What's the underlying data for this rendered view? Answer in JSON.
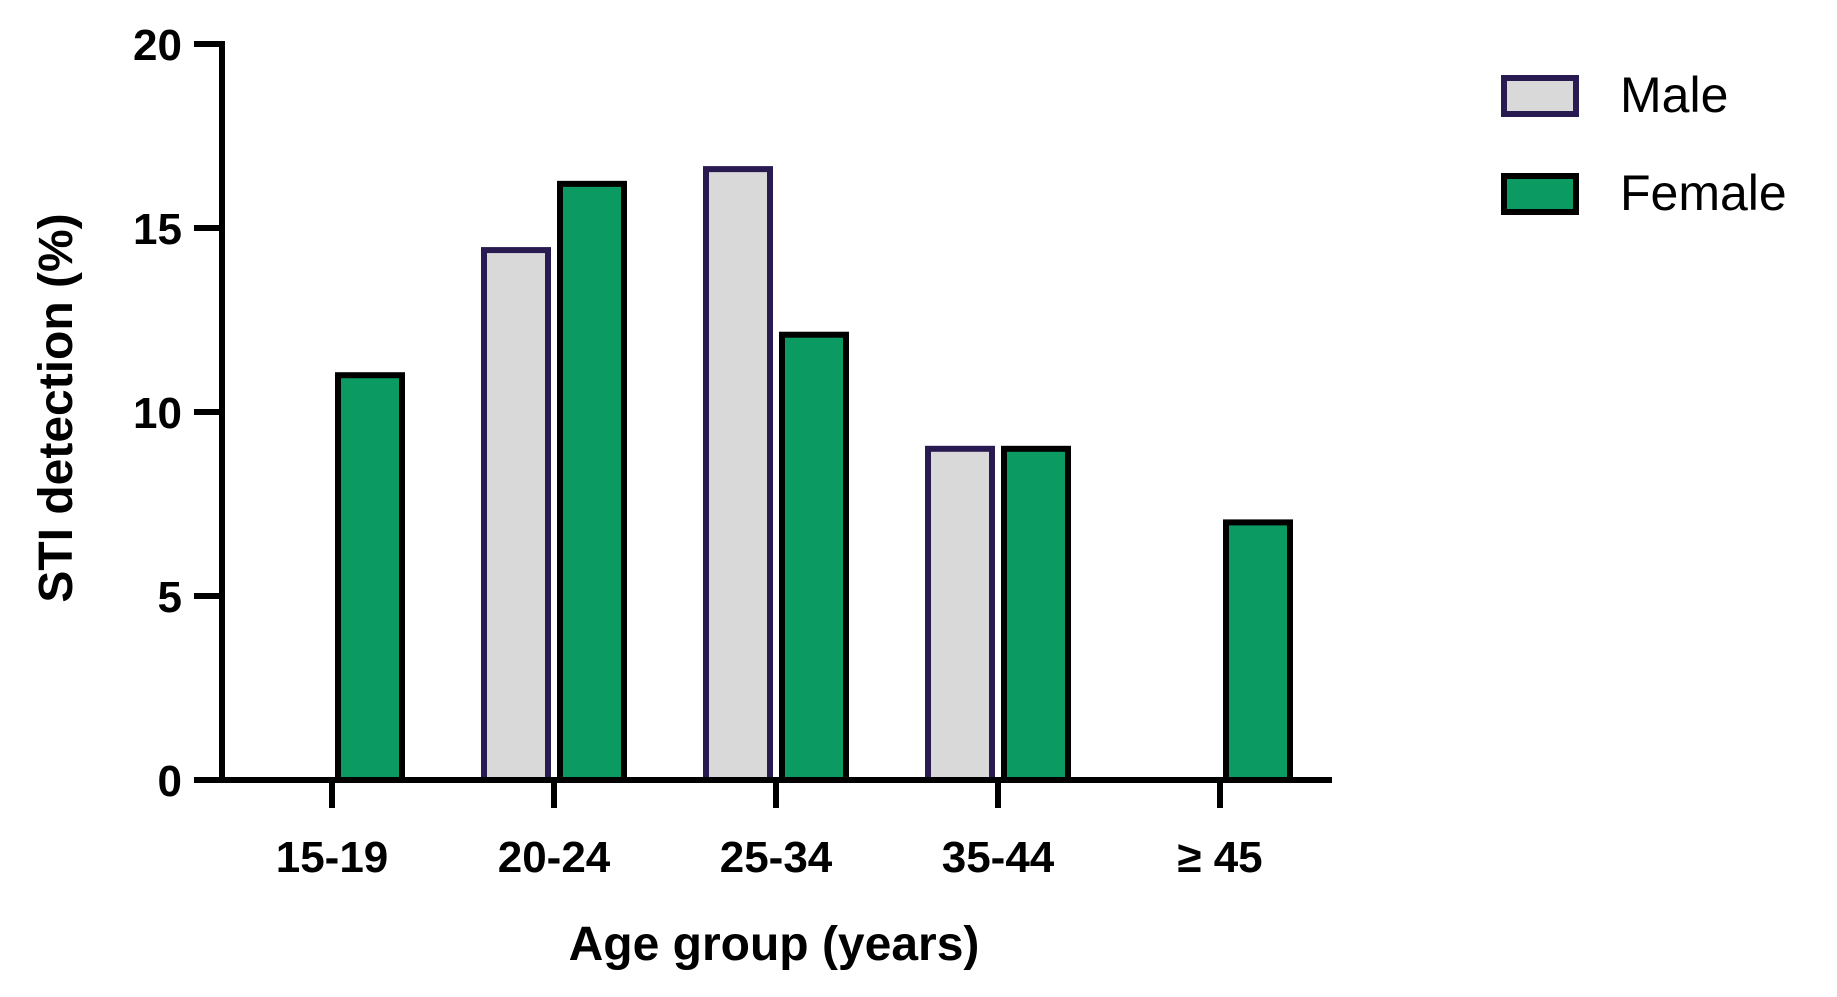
{
  "chart_data": {
    "type": "bar",
    "xlabel": "Age group (years)",
    "ylabel": "STI detection (%)",
    "categories": [
      "15-19",
      "20-24",
      "25-34",
      "35-44",
      "≥ 45"
    ],
    "ylim": [
      0,
      20
    ],
    "yticks": [
      "0",
      "5",
      "10",
      "15",
      "20"
    ],
    "grid": false,
    "legend_position": "top-right",
    "series": [
      {
        "name": "Male",
        "values": [
          0,
          14.4,
          16.6,
          9.0,
          0
        ],
        "fill": "#d9d9d9",
        "stroke": "#2a1a52"
      },
      {
        "name": "Female",
        "values": [
          11.0,
          16.2,
          12.1,
          9.0,
          7.0
        ],
        "fill": "#0a9a62",
        "stroke": "#000000"
      }
    ]
  }
}
